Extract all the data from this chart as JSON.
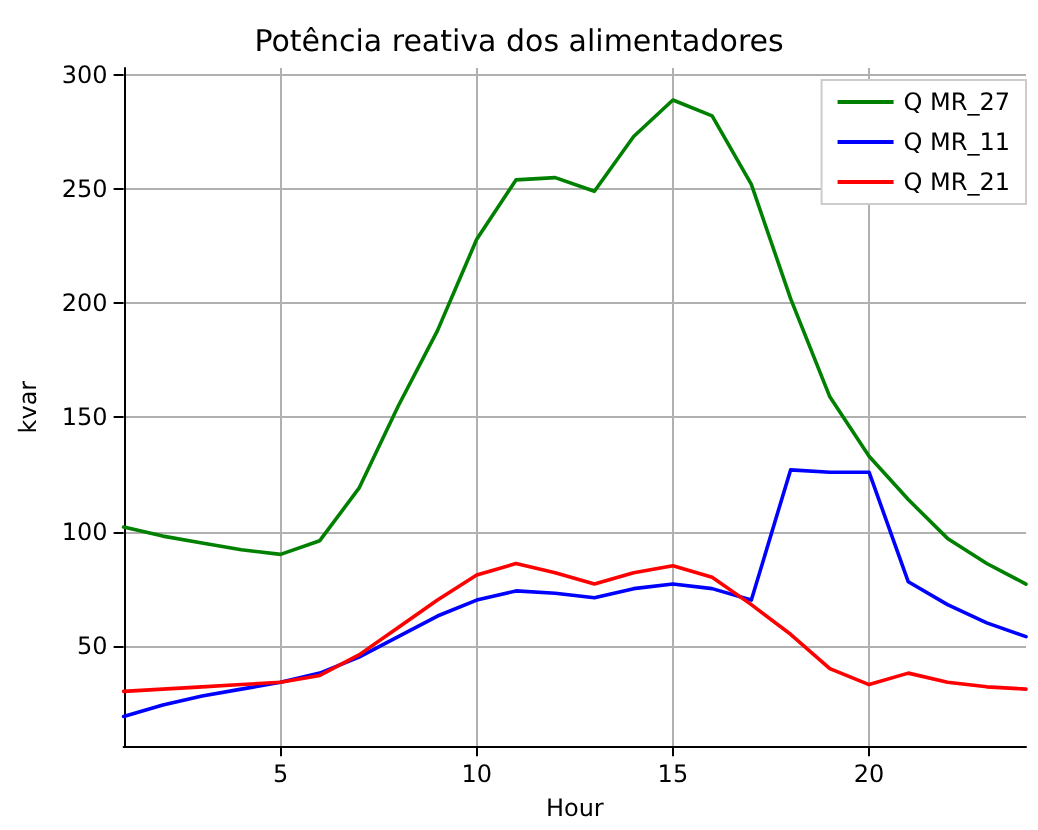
{
  "chart_data": {
    "type": "line",
    "title": "Potência reativa dos alimentadores",
    "xlabel": "Hour",
    "ylabel": "kvar",
    "x": [
      1,
      2,
      3,
      4,
      5,
      6,
      7,
      8,
      9,
      10,
      11,
      12,
      13,
      14,
      15,
      16,
      17,
      18,
      19,
      20,
      21,
      22,
      23,
      24
    ],
    "series": [
      {
        "name": "Q MR_27",
        "color": "#008000",
        "values": [
          102,
          98,
          95,
          92,
          90,
          96,
          119,
          155,
          188,
          228,
          254,
          255,
          249,
          273,
          289,
          282,
          252,
          202,
          159,
          133,
          114,
          97,
          86,
          77
        ]
      },
      {
        "name": "Q MR_11",
        "color": "#0000ff",
        "values": [
          19,
          24,
          28,
          31,
          34,
          38,
          45,
          54,
          63,
          70,
          74,
          73,
          71,
          75,
          77,
          75,
          70,
          127,
          126,
          126,
          78,
          68,
          60,
          54
        ]
      },
      {
        "name": "Q MR_21",
        "color": "#ff0000",
        "values": [
          30,
          31,
          32,
          33,
          34,
          37,
          46,
          58,
          70,
          81,
          86,
          82,
          77,
          82,
          85,
          80,
          68,
          55,
          40,
          33,
          38,
          34,
          32,
          31
        ]
      }
    ],
    "xlim": [
      1,
      24
    ],
    "xticks": [
      5,
      10,
      15,
      20
    ],
    "ylim": [
      6,
      303
    ],
    "yticks": [
      50,
      100,
      150,
      200,
      250,
      300
    ],
    "grid": true,
    "legend": "top right",
    "marker": "none",
    "line_style": "solid"
  }
}
